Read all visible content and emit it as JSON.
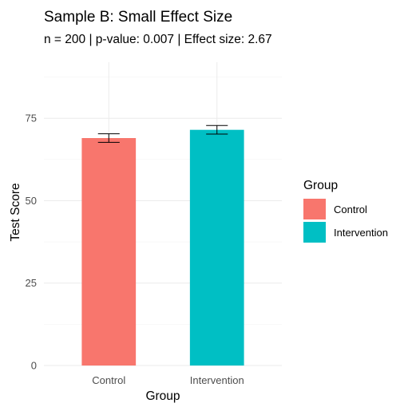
{
  "chart_data": {
    "type": "bar",
    "title": "Sample B: Small Effect Size",
    "subtitle": "n = 200 | p-value: 0.007 | Effect size: 2.67",
    "xlabel": "Group",
    "ylabel": "Test Score",
    "categories": [
      "Control",
      "Intervention"
    ],
    "values": [
      69,
      71.5
    ],
    "error_low": [
      67.7,
      70.2
    ],
    "error_high": [
      70.3,
      72.8
    ],
    "ylim": [
      0,
      92
    ],
    "yticks": [
      0,
      25,
      50,
      75
    ],
    "grid": true,
    "legend": {
      "title": "Group",
      "placement": "right",
      "entries": [
        "Control",
        "Intervention"
      ]
    },
    "colors": [
      "#f8766d",
      "#00bfc4"
    ]
  }
}
